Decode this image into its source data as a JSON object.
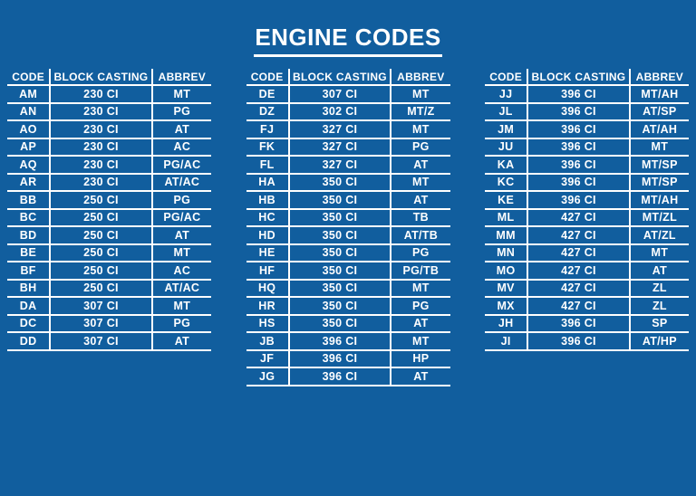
{
  "title": "ENGINE CODES",
  "colors": {
    "background": "#115E9E",
    "line": "#FFFFFF",
    "text": "#FFFFFF"
  },
  "tables": [
    {
      "columns": [
        "CODE",
        "BLOCK CASTING",
        "ABBREV"
      ],
      "rows": [
        [
          "AM",
          "230 CI",
          "MT"
        ],
        [
          "AN",
          "230 CI",
          "PG"
        ],
        [
          "AO",
          "230 CI",
          "AT"
        ],
        [
          "AP",
          "230 CI",
          "AC"
        ],
        [
          "AQ",
          "230 CI",
          "PG/AC"
        ],
        [
          "AR",
          "230 CI",
          "AT/AC"
        ],
        [
          "BB",
          "250 CI",
          "PG"
        ],
        [
          "BC",
          "250 CI",
          "PG/AC"
        ],
        [
          "BD",
          "250 CI",
          "AT"
        ],
        [
          "BE",
          "250 CI",
          "MT"
        ],
        [
          "BF",
          "250 CI",
          "AC"
        ],
        [
          "BH",
          "250 CI",
          "AT/AC"
        ],
        [
          "DA",
          "307 CI",
          "MT"
        ],
        [
          "DC",
          "307 CI",
          "PG"
        ],
        [
          "DD",
          "307 CI",
          "AT"
        ]
      ]
    },
    {
      "columns": [
        "CODE",
        "BLOCK CASTING",
        "ABBREV"
      ],
      "rows": [
        [
          "DE",
          "307 CI",
          "MT"
        ],
        [
          "DZ",
          "302 CI",
          "MT/Z"
        ],
        [
          "FJ",
          "327 CI",
          "MT"
        ],
        [
          "FK",
          "327 CI",
          "PG"
        ],
        [
          "FL",
          "327 CI",
          "AT"
        ],
        [
          "HA",
          "350 CI",
          "MT"
        ],
        [
          "HB",
          "350 CI",
          "AT"
        ],
        [
          "HC",
          "350 CI",
          "TB"
        ],
        [
          "HD",
          "350 CI",
          "AT/TB"
        ],
        [
          "HE",
          "350 CI",
          "PG"
        ],
        [
          "HF",
          "350 CI",
          "PG/TB"
        ],
        [
          "HQ",
          "350 CI",
          "MT"
        ],
        [
          "HR",
          "350 CI",
          "PG"
        ],
        [
          "HS",
          "350 CI",
          "AT"
        ],
        [
          "JB",
          "396 CI",
          "MT"
        ],
        [
          "JF",
          "396 CI",
          "HP"
        ],
        [
          "JG",
          "396 CI",
          "AT"
        ]
      ]
    },
    {
      "columns": [
        "CODE",
        "BLOCK CASTING",
        "ABBREV"
      ],
      "rows": [
        [
          "JJ",
          "396 CI",
          "MT/AH"
        ],
        [
          "JL",
          "396 CI",
          "AT/SP"
        ],
        [
          "JM",
          "396 CI",
          "AT/AH"
        ],
        [
          "JU",
          "396 CI",
          "MT"
        ],
        [
          "KA",
          "396 CI",
          "MT/SP"
        ],
        [
          "KC",
          "396 CI",
          "MT/SP"
        ],
        [
          "KE",
          "396 CI",
          "MT/AH"
        ],
        [
          "ML",
          "427 CI",
          "MT/ZL"
        ],
        [
          "MM",
          "427 CI",
          "AT/ZL"
        ],
        [
          "MN",
          "427 CI",
          "MT"
        ],
        [
          "MO",
          "427 CI",
          "AT"
        ],
        [
          "MV",
          "427 CI",
          "ZL"
        ],
        [
          "MX",
          "427 CI",
          "ZL"
        ],
        [
          "JH",
          "396 CI",
          "SP"
        ],
        [
          "JI",
          "396 CI",
          "AT/HP"
        ]
      ]
    }
  ]
}
